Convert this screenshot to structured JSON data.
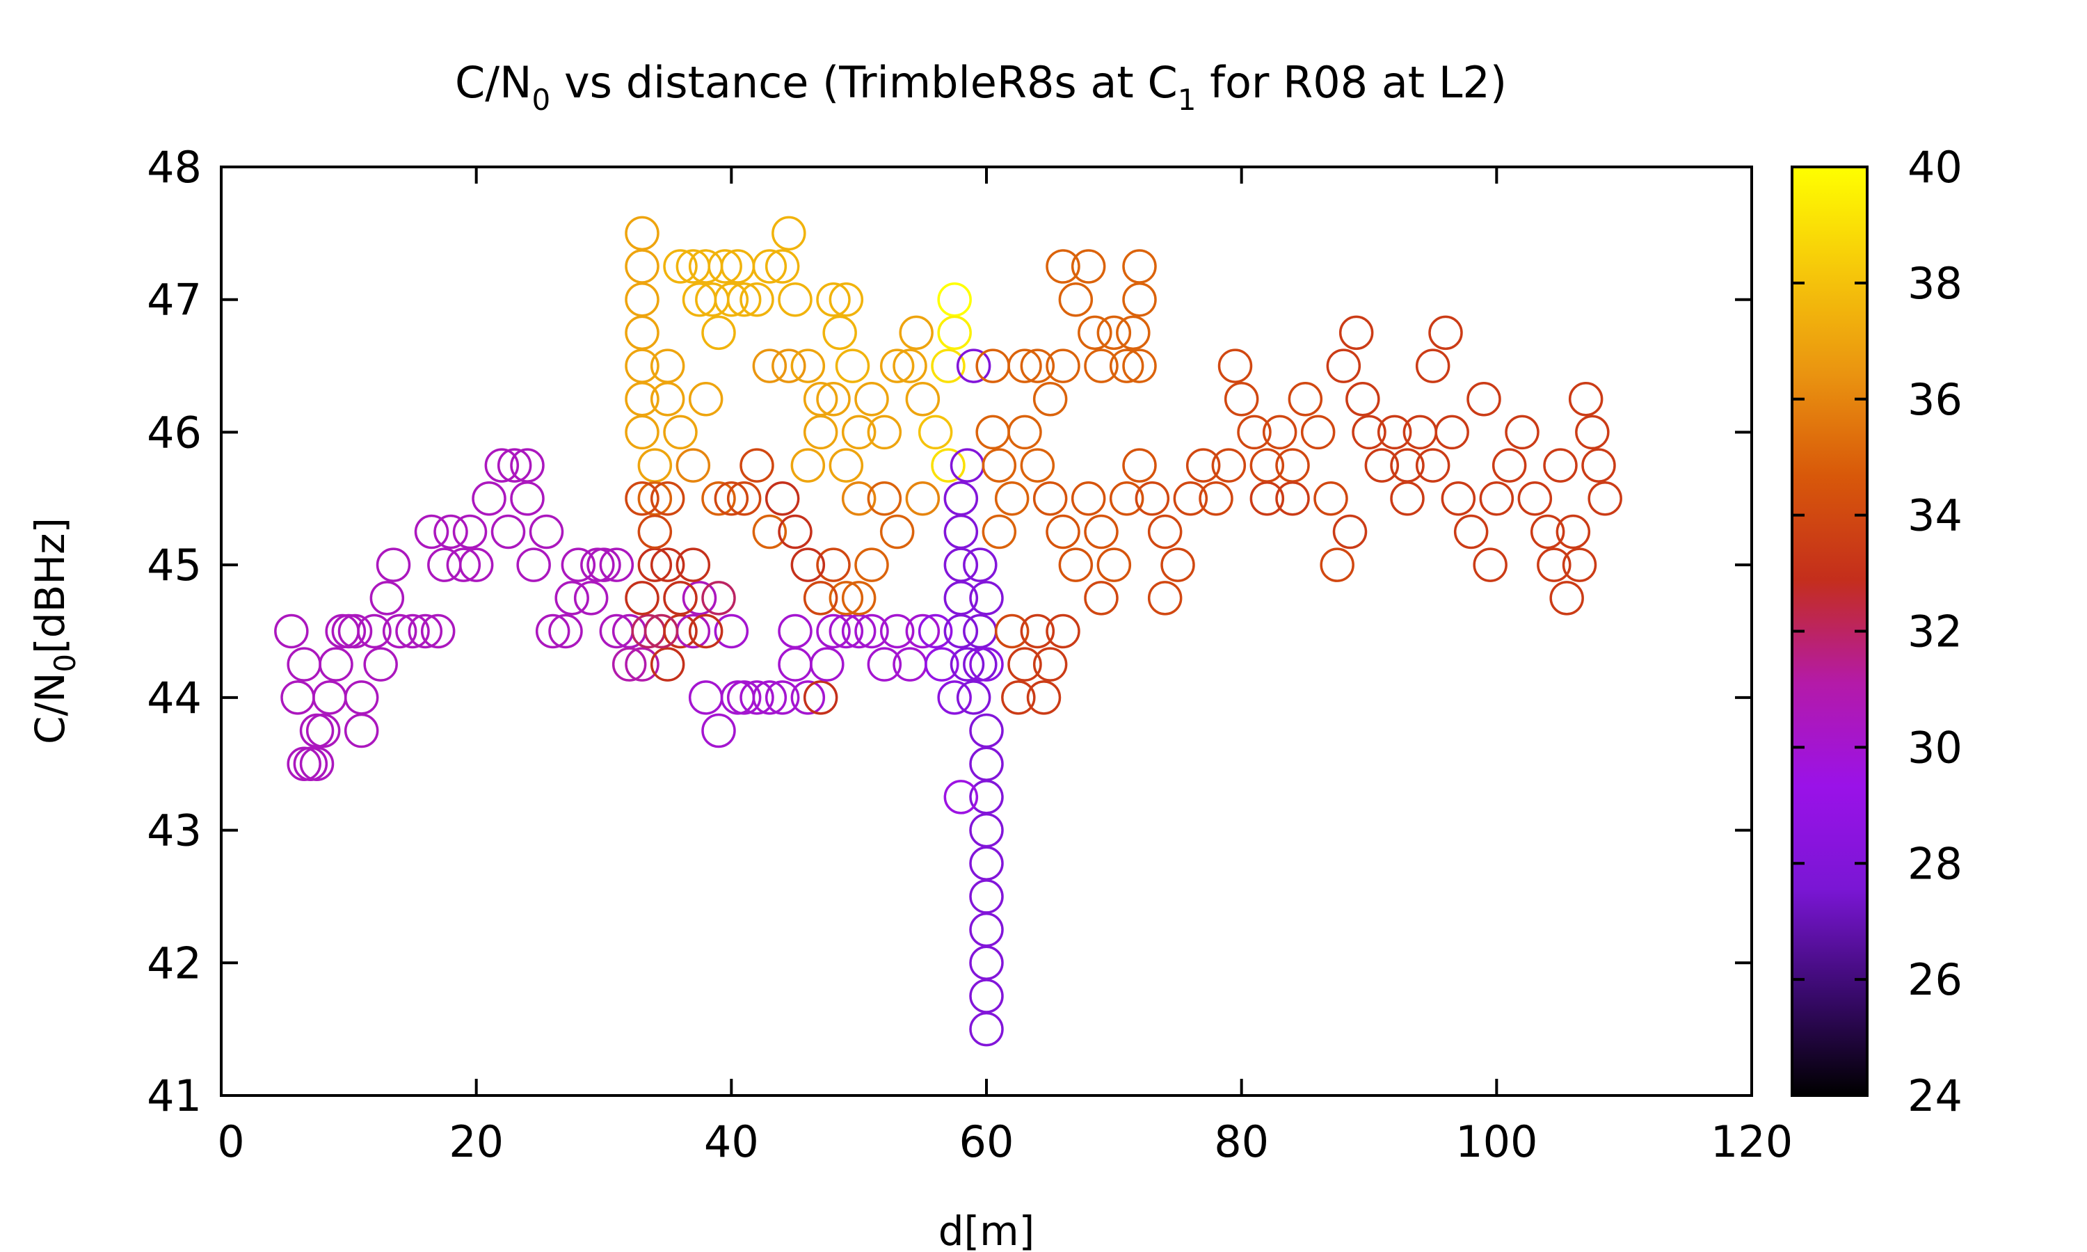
{
  "chart_data": {
    "type": "scatter",
    "title_main": "C/N",
    "title_sub0": "0",
    "title_mid": " vs distance (TrimbleR8s at C",
    "title_sub1": "1",
    "title_end": " for R08 at L2)",
    "xlabel": "d[m]",
    "ylabel_main": "C/N",
    "ylabel_sub": "0",
    "ylabel_end": "[dBHz]",
    "xlim": [
      0,
      120
    ],
    "ylim": [
      41,
      48
    ],
    "xticks": [
      "0",
      "20",
      "40",
      "60",
      "80",
      "100",
      "120"
    ],
    "yticks": [
      "41",
      "42",
      "43",
      "44",
      "45",
      "46",
      "47",
      "48"
    ],
    "colorbar": {
      "range": [
        24,
        40
      ],
      "ticks": [
        "24",
        "26",
        "28",
        "30",
        "32",
        "34",
        "36",
        "38",
        "40"
      ],
      "palette": [
        "#000000",
        "#3a0a6e",
        "#7a16d4",
        "#9a12e8",
        "#b41aa8",
        "#c42e1c",
        "#d8580a",
        "#ea9410",
        "#f6c80a",
        "#ffff00"
      ]
    },
    "marker": "open-circle",
    "points": [
      [
        5.5,
        44.5,
        30.5
      ],
      [
        6,
        44,
        30.5
      ],
      [
        6.5,
        44.25,
        30.5
      ],
      [
        6.5,
        43.5,
        30.5
      ],
      [
        7,
        43.5,
        30.5
      ],
      [
        7.5,
        43.5,
        30.5
      ],
      [
        7.5,
        43.75,
        30.5
      ],
      [
        8,
        43.75,
        30.5
      ],
      [
        8.5,
        44,
        30.5
      ],
      [
        9,
        44.25,
        30.5
      ],
      [
        9.5,
        44.5,
        30.5
      ],
      [
        10,
        44.5,
        30.5
      ],
      [
        10.5,
        44.5,
        30.5
      ],
      [
        11,
        44,
        30.5
      ],
      [
        11,
        43.75,
        30.5
      ],
      [
        12,
        44.5,
        30.5
      ],
      [
        12.5,
        44.25,
        30.5
      ],
      [
        13,
        44.75,
        30.5
      ],
      [
        13.5,
        45,
        30.5
      ],
      [
        14,
        44.5,
        30.5
      ],
      [
        15,
        44.5,
        30.5
      ],
      [
        16,
        44.5,
        30.5
      ],
      [
        17,
        44.5,
        30.5
      ],
      [
        16.5,
        45.25,
        30.5
      ],
      [
        17.5,
        45,
        30.5
      ],
      [
        18,
        45.25,
        30.5
      ],
      [
        19,
        45,
        30.5
      ],
      [
        19.5,
        45.25,
        30.5
      ],
      [
        20,
        45,
        30.5
      ],
      [
        21,
        45.5,
        30.5
      ],
      [
        22,
        45.75,
        30.5
      ],
      [
        22.5,
        45.25,
        30.5
      ],
      [
        23,
        45.75,
        30.5
      ],
      [
        24,
        45.75,
        30.5
      ],
      [
        24,
        45.5,
        30.5
      ],
      [
        24.5,
        45,
        30.5
      ],
      [
        25.5,
        45.25,
        30.5
      ],
      [
        26,
        44.5,
        30.5
      ],
      [
        27,
        44.5,
        30.5
      ],
      [
        27.5,
        44.75,
        30.5
      ],
      [
        28,
        45,
        30.5
      ],
      [
        29,
        44.75,
        30.5
      ],
      [
        29.5,
        45,
        30.5
      ],
      [
        30,
        45,
        30.5
      ],
      [
        31,
        45,
        30.5
      ],
      [
        31,
        44.5,
        30.5
      ],
      [
        32,
        44.5,
        30.5
      ],
      [
        32,
        44.25,
        31
      ],
      [
        33,
        44.25,
        31
      ],
      [
        33.5,
        44.5,
        32
      ],
      [
        35,
        44.25,
        33
      ],
      [
        36,
        44.5,
        33
      ],
      [
        37,
        44.5,
        30.5
      ],
      [
        37.5,
        44.75,
        30.5
      ],
      [
        38,
        44,
        30
      ],
      [
        39,
        43.75,
        30
      ],
      [
        39,
        44.75,
        32
      ],
      [
        40,
        44.5,
        30
      ],
      [
        40.5,
        44,
        30
      ],
      [
        41,
        44,
        30
      ],
      [
        42,
        44,
        30
      ],
      [
        43,
        44,
        30
      ],
      [
        44,
        44,
        30
      ],
      [
        45,
        44.25,
        30
      ],
      [
        45,
        44.5,
        30
      ],
      [
        46,
        44,
        30
      ],
      [
        47,
        44,
        33
      ],
      [
        47.5,
        44.25,
        30
      ],
      [
        48,
        44.5,
        30
      ],
      [
        49,
        44.5,
        30
      ],
      [
        50,
        44.5,
        30
      ],
      [
        51,
        44.5,
        30
      ],
      [
        52,
        44.25,
        30
      ],
      [
        53,
        44.5,
        30
      ],
      [
        54,
        44.25,
        30
      ],
      [
        55,
        44.5,
        30
      ],
      [
        56,
        44.5,
        29
      ],
      [
        56.5,
        44.25,
        29
      ],
      [
        33,
        47.5,
        37
      ],
      [
        33,
        47.25,
        37
      ],
      [
        33,
        47,
        37
      ],
      [
        33,
        46.75,
        37
      ],
      [
        33,
        46.5,
        37
      ],
      [
        33,
        46.25,
        37
      ],
      [
        33,
        46,
        37
      ],
      [
        34,
        45.75,
        37
      ],
      [
        34,
        45.5,
        35
      ],
      [
        35,
        46.25,
        37
      ],
      [
        36,
        47.25,
        37.5
      ],
      [
        37,
        47.25,
        37.5
      ],
      [
        37.5,
        47,
        37.5
      ],
      [
        38,
        47.25,
        37.5
      ],
      [
        38.5,
        47,
        37.5
      ],
      [
        39,
        46.75,
        37.5
      ],
      [
        39.5,
        47.25,
        37.5
      ],
      [
        40,
        47,
        37.5
      ],
      [
        40.5,
        47.25,
        37.5
      ],
      [
        41,
        47,
        37.5
      ],
      [
        42,
        47,
        37.5
      ],
      [
        43,
        47.25,
        37.5
      ],
      [
        44,
        47.25,
        37.5
      ],
      [
        44.5,
        47.5,
        37.5
      ],
      [
        45,
        47,
        37.5
      ],
      [
        43,
        46.5,
        36.5
      ],
      [
        44.5,
        46.5,
        36.5
      ],
      [
        46,
        46.5,
        37
      ],
      [
        47,
        46.25,
        37
      ],
      [
        48,
        47,
        37.5
      ],
      [
        48.5,
        46.75,
        37.5
      ],
      [
        49,
        47,
        37.5
      ],
      [
        49.5,
        46.5,
        37.5
      ],
      [
        50,
        46,
        37
      ],
      [
        35,
        46.5,
        37
      ],
      [
        36,
        46,
        37
      ],
      [
        37,
        45.75,
        36
      ],
      [
        38,
        46.25,
        37
      ],
      [
        39,
        45.5,
        35
      ],
      [
        40,
        45.5,
        34
      ],
      [
        41,
        45.5,
        34
      ],
      [
        42,
        45.75,
        34
      ],
      [
        43,
        45.25,
        35
      ],
      [
        44,
        45.5,
        33
      ],
      [
        45,
        45.25,
        33
      ],
      [
        46,
        45.75,
        37
      ],
      [
        47,
        46,
        37
      ],
      [
        48,
        46.25,
        37
      ],
      [
        49,
        45.75,
        37
      ],
      [
        50,
        45.5,
        36
      ],
      [
        51,
        46.25,
        37
      ],
      [
        52,
        46,
        37
      ],
      [
        53,
        46.5,
        37
      ],
      [
        54,
        46.5,
        37
      ],
      [
        54.5,
        46.75,
        37
      ],
      [
        55,
        46.25,
        37
      ],
      [
        56,
        46,
        38
      ],
      [
        57,
        46.5,
        39
      ],
      [
        57.5,
        47,
        40
      ],
      [
        57.5,
        46.75,
        39.5
      ],
      [
        57,
        45.75,
        39
      ],
      [
        55,
        45.5,
        36
      ],
      [
        53,
        45.25,
        35
      ],
      [
        52,
        45.5,
        35
      ],
      [
        51,
        45,
        35
      ],
      [
        50,
        44.75,
        35
      ],
      [
        49,
        44.75,
        35
      ],
      [
        48,
        45,
        34
      ],
      [
        47,
        44.75,
        34
      ],
      [
        46,
        45,
        33
      ],
      [
        34,
        45,
        33
      ],
      [
        35,
        45,
        33
      ],
      [
        36,
        44.75,
        33
      ],
      [
        37,
        45,
        33
      ],
      [
        38,
        44.5,
        33
      ],
      [
        34.5,
        44.5,
        32
      ],
      [
        33,
        44.75,
        33
      ],
      [
        33,
        45.5,
        34
      ],
      [
        34,
        45.25,
        34
      ],
      [
        35,
        45.5,
        34
      ],
      [
        58,
        45.5,
        28
      ],
      [
        58,
        45.25,
        28
      ],
      [
        58,
        45,
        28
      ],
      [
        58,
        44.75,
        28
      ],
      [
        58,
        44.5,
        28
      ],
      [
        58.5,
        45.75,
        28
      ],
      [
        58.5,
        44.25,
        28
      ],
      [
        57.5,
        44,
        28.5
      ],
      [
        59,
        44,
        28
      ],
      [
        59.5,
        44.25,
        28
      ],
      [
        59,
        46.5,
        28
      ],
      [
        59.5,
        45,
        28
      ],
      [
        60,
        44.75,
        28
      ],
      [
        60,
        44.25,
        28.5
      ],
      [
        60,
        43.75,
        28
      ],
      [
        60,
        43.5,
        28
      ],
      [
        60,
        43.25,
        28
      ],
      [
        60,
        43,
        28
      ],
      [
        60,
        42.75,
        28
      ],
      [
        60,
        42.5,
        28
      ],
      [
        60,
        42.25,
        28
      ],
      [
        60,
        42,
        28
      ],
      [
        60,
        41.75,
        28
      ],
      [
        60,
        41.5,
        28
      ],
      [
        58,
        43.25,
        29.5
      ],
      [
        59.5,
        44.5,
        28
      ],
      [
        60.5,
        46.5,
        35
      ],
      [
        60.5,
        46,
        35
      ],
      [
        61,
        45.75,
        35
      ],
      [
        61,
        45.25,
        35
      ],
      [
        62,
        45.5,
        35
      ],
      [
        62,
        44.5,
        34
      ],
      [
        62.5,
        44,
        33.5
      ],
      [
        63,
        44.25,
        33.5
      ],
      [
        64,
        44.5,
        33.5
      ],
      [
        64.5,
        44,
        33.5
      ],
      [
        65,
        44.25,
        33.5
      ],
      [
        66,
        44.5,
        33.5
      ],
      [
        63,
        46.5,
        35
      ],
      [
        64,
        46.5,
        35
      ],
      [
        65,
        46.25,
        35
      ],
      [
        66,
        46.5,
        35
      ],
      [
        66,
        47.25,
        35
      ],
      [
        67,
        47,
        35
      ],
      [
        68,
        47.25,
        35
      ],
      [
        68.5,
        46.75,
        35
      ],
      [
        69,
        46.5,
        35
      ],
      [
        70,
        46.75,
        35
      ],
      [
        71,
        46.5,
        35
      ],
      [
        71.5,
        46.75,
        35
      ],
      [
        72,
        47.25,
        35
      ],
      [
        72,
        47,
        35
      ],
      [
        72,
        46.5,
        35
      ],
      [
        63,
        46,
        35
      ],
      [
        64,
        45.75,
        35
      ],
      [
        65,
        45.5,
        34.5
      ],
      [
        66,
        45.25,
        34.5
      ],
      [
        67,
        45,
        34.5
      ],
      [
        68,
        45.5,
        34.5
      ],
      [
        69,
        45.25,
        34.5
      ],
      [
        69,
        44.75,
        34
      ],
      [
        70,
        45,
        34.5
      ],
      [
        71,
        45.5,
        34.5
      ],
      [
        72,
        45.75,
        34.5
      ],
      [
        73,
        45.5,
        34
      ],
      [
        74,
        45.25,
        34
      ],
      [
        74,
        44.75,
        34
      ],
      [
        75,
        45,
        34
      ],
      [
        76,
        45.5,
        34
      ],
      [
        77,
        45.75,
        34
      ],
      [
        78,
        45.5,
        34
      ],
      [
        79,
        45.75,
        34
      ],
      [
        79.5,
        46.5,
        34
      ],
      [
        80,
        46.25,
        34
      ],
      [
        81,
        46,
        34
      ],
      [
        82,
        45.75,
        34
      ],
      [
        83,
        46,
        34
      ],
      [
        84,
        45.75,
        34
      ],
      [
        85,
        46.25,
        34
      ],
      [
        86,
        46,
        34
      ],
      [
        87,
        45.5,
        34
      ],
      [
        87.5,
        45,
        34
      ],
      [
        88,
        46.5,
        33.5
      ],
      [
        88.5,
        45.25,
        33.5
      ],
      [
        89,
        46.75,
        33.5
      ],
      [
        89.5,
        46.25,
        33.5
      ],
      [
        90,
        46,
        33.5
      ],
      [
        91,
        45.75,
        33.5
      ],
      [
        92,
        46,
        33.5
      ],
      [
        93,
        45.75,
        33.5
      ],
      [
        94,
        46,
        33.5
      ],
      [
        95,
        46.5,
        33.5
      ],
      [
        96,
        46.75,
        33.5
      ],
      [
        96.5,
        46,
        33.5
      ],
      [
        97,
        45.5,
        33.5
      ],
      [
        98,
        45.25,
        33.5
      ],
      [
        99,
        46.25,
        33.5
      ],
      [
        99.5,
        45,
        33.5
      ],
      [
        100,
        45.5,
        33.5
      ],
      [
        101,
        45.75,
        33.5
      ],
      [
        102,
        46,
        33.5
      ],
      [
        103,
        45.5,
        33.5
      ],
      [
        104,
        45.25,
        33.5
      ],
      [
        104.5,
        45,
        33.5
      ],
      [
        105,
        45.75,
        33.5
      ],
      [
        105.5,
        44.75,
        33.5
      ],
      [
        106,
        45.25,
        33.5
      ],
      [
        106.5,
        45,
        33.5
      ],
      [
        107,
        46.25,
        33.5
      ],
      [
        107.5,
        46,
        33.5
      ],
      [
        108,
        45.75,
        33.5
      ],
      [
        108.5,
        45.5,
        33.5
      ],
      [
        95,
        45.75,
        33.5
      ],
      [
        93,
        45.5,
        33.5
      ],
      [
        84,
        45.5,
        33.5
      ],
      [
        82,
        45.5,
        33.5
      ]
    ]
  }
}
